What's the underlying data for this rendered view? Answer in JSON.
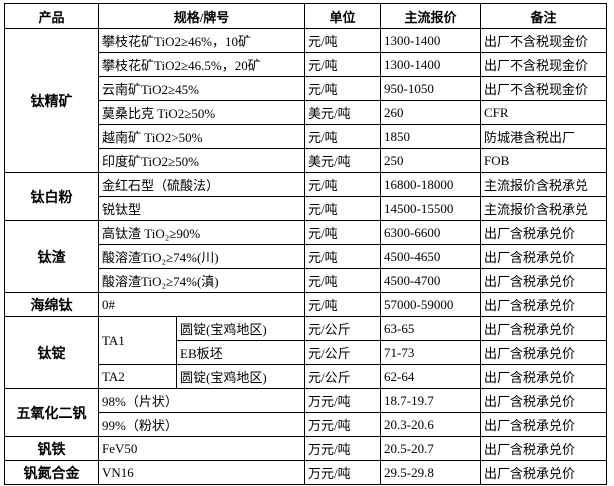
{
  "header": [
    "产品",
    "规格/牌号",
    "单位",
    "主流报价",
    "备注"
  ],
  "groups": [
    {
      "product": "钛精矿",
      "rows": [
        {
          "spec": "攀枝花矿TiO2≥46%，10矿",
          "unit": "元/吨",
          "price": "1300-1400",
          "note": "出厂不含税现金价"
        },
        {
          "spec": "攀枝花矿TiO2≥46.5%，20矿",
          "unit": "元/吨",
          "price": "1300-1400",
          "note": "出厂不含税现金价"
        },
        {
          "spec": "云南矿TiO2≥45%",
          "unit": "元/吨",
          "price": "950-1050",
          "note": "出厂不含税现金价"
        },
        {
          "spec": "莫桑比克 TiO2≥50%",
          "unit": "美元/吨",
          "price": "260",
          "note": "CFR"
        },
        {
          "spec": "越南矿 TiO2>50%",
          "unit": "元/吨",
          "price": "1850",
          "note": "防城港含税出厂"
        },
        {
          "spec": "印度矿TiO2≥50%",
          "unit": "美元/吨",
          "price": "250",
          "note": "FOB"
        }
      ]
    },
    {
      "product": "钛白粉",
      "rows": [
        {
          "spec": "金红石型（硫酸法）",
          "unit": "元/吨",
          "price": "16800-18000",
          "note": "主流报价含税承兑"
        },
        {
          "spec": "锐钛型",
          "unit": "元/吨",
          "price": "14500-15500",
          "note": "主流报价含税承兑"
        }
      ]
    },
    {
      "product": "钛渣",
      "rows": [
        {
          "spec": "高钛渣 TiO₂≥90%",
          "unit": "元/吨",
          "price": "6300-6600",
          "note": "出厂含税承兑价"
        },
        {
          "spec": "酸溶渣TiO₂≥74%(川)",
          "unit": "元/吨",
          "price": "4500-4650",
          "note": "出厂含税承兑价"
        },
        {
          "spec": "酸溶渣TiO₂≥74%(滇)",
          "unit": "元/吨",
          "price": "4500-4700",
          "note": "出厂含税承兑价"
        }
      ]
    },
    {
      "product": "海绵钛",
      "rows": [
        {
          "spec": "0#",
          "unit": "元/吨",
          "price": "57000-59000",
          "note": "出厂含税承兑价"
        }
      ]
    },
    {
      "product": "钛锭",
      "rows": [
        {
          "grade": "TA1",
          "form": "圆锭(宝鸡地区)",
          "unit": "元/公斤",
          "price": "63-65",
          "note": "出厂含税承兑价"
        },
        {
          "form": "EB板坯",
          "unit": "元/公斤",
          "price": "71-73",
          "note": "出厂含税承兑价"
        },
        {
          "grade": "TA2",
          "form": "圆锭(宝鸡地区)",
          "unit": "元/公斤",
          "price": "62-64",
          "note": "出厂含税承兑价"
        }
      ]
    },
    {
      "product": "五氧化二钒",
      "rows": [
        {
          "spec": "98%（片状）",
          "unit": "万元/吨",
          "price": "18.7-19.7",
          "note": "出厂含税承兑价"
        },
        {
          "spec": "99%（粉状）",
          "unit": "万元/吨",
          "price": "20.3-20.6",
          "note": "出厂含税承兑价"
        }
      ]
    },
    {
      "product": "钒铁",
      "rows": [
        {
          "spec": "FeV50",
          "unit": "万元/吨",
          "price": "20.5-20.7",
          "note": "出厂含税承兑价"
        }
      ]
    },
    {
      "product": "钒氮合金",
      "rows": [
        {
          "spec": "VN16",
          "unit": "万元/吨",
          "price": "29.5-29.8",
          "note": "出厂含税承兑价"
        }
      ]
    }
  ]
}
